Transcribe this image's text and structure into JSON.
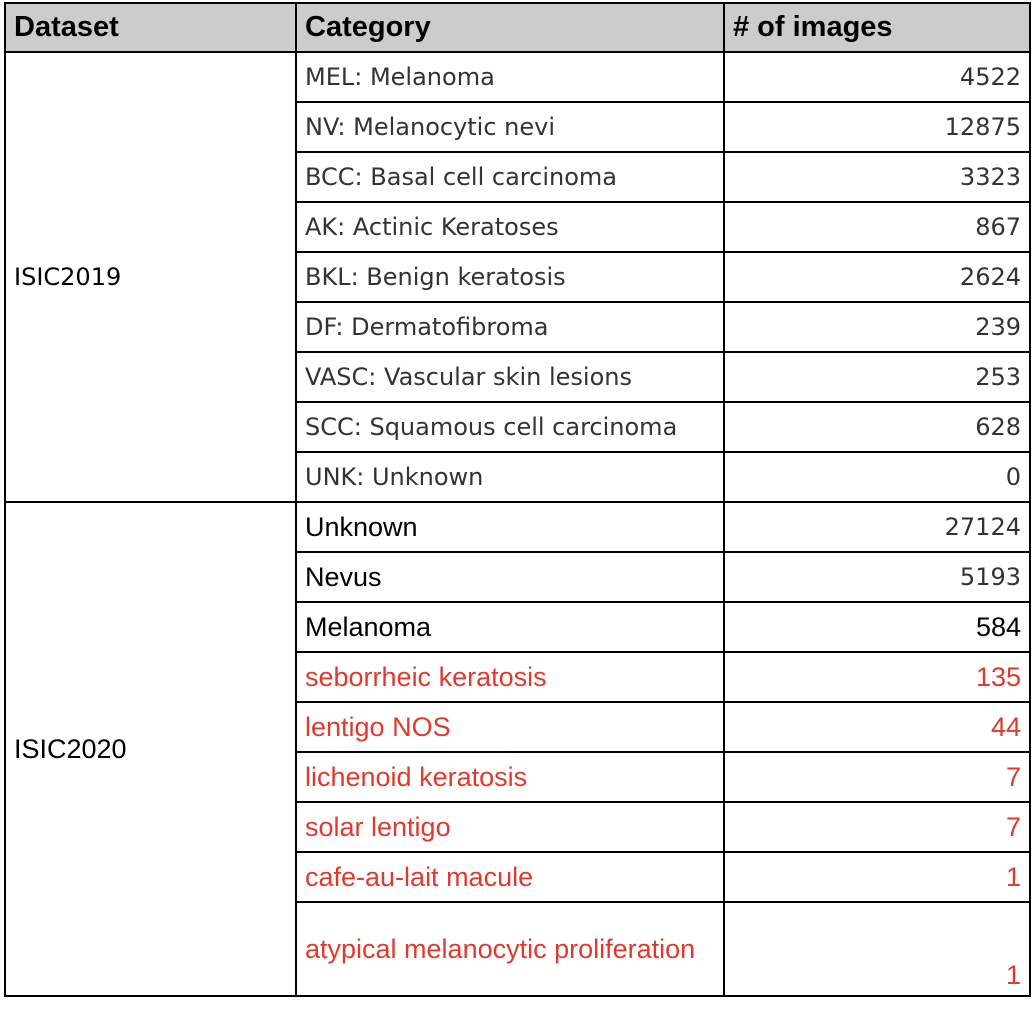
{
  "table": {
    "headers": [
      "Dataset",
      "Category",
      "# of images"
    ],
    "groups": [
      {
        "dataset": "ISIC2019",
        "rows": [
          {
            "category": "MEL: Melanoma",
            "count": "4522"
          },
          {
            "category": "NV: Melanocytic nevi",
            "count": "12875"
          },
          {
            "category": "BCC: Basal cell carcinoma",
            "count": "3323"
          },
          {
            "category": "AK: Actinic Keratoses",
            "count": "867"
          },
          {
            "category": "BKL: Benign keratosis",
            "count": "2624"
          },
          {
            "category": "DF: Dermatofibroma",
            "count": "239"
          },
          {
            "category": "VASC: Vascular skin lesions",
            "count": "253"
          },
          {
            "category": "SCC: Squamous cell carcinoma",
            "count": "628"
          },
          {
            "category": "UNK: Unknown",
            "count": "0"
          }
        ]
      },
      {
        "dataset": "ISIC2020",
        "rows": [
          {
            "category": "Unknown",
            "count": "27124"
          },
          {
            "category": "Nevus",
            "count": "5193"
          },
          {
            "category": "Melanoma",
            "count": "584"
          },
          {
            "category": "seborrheic keratosis",
            "count": "135"
          },
          {
            "category": "lentigo NOS",
            "count": "44"
          },
          {
            "category": "lichenoid keratosis",
            "count": "7"
          },
          {
            "category": "solar lentigo",
            "count": "7"
          },
          {
            "category": "cafe-au-lait macule",
            "count": "1"
          },
          {
            "category": "atypical melanocytic proliferation",
            "count": "1"
          }
        ]
      }
    ]
  },
  "colors": {
    "header_bg": "#cccccc",
    "highlight_red": "#e03a2e",
    "border": "#000000"
  }
}
